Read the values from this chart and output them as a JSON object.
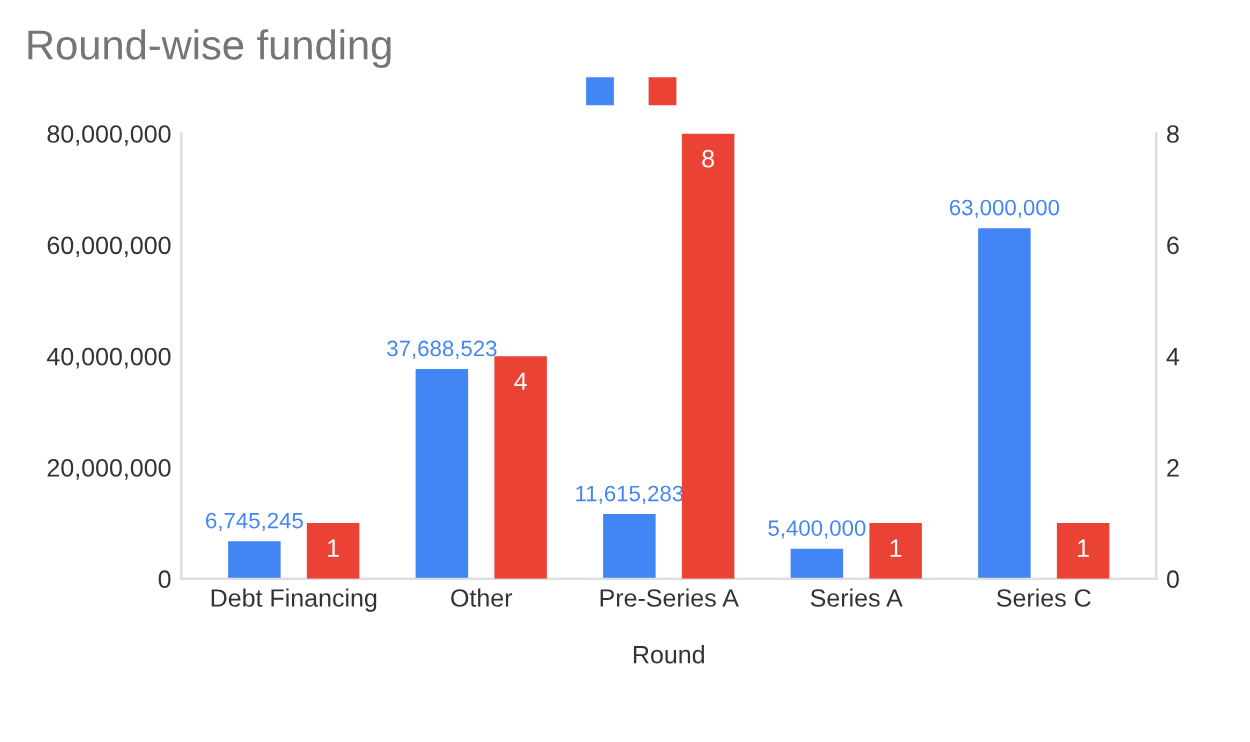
{
  "chart_data": {
    "type": "bar",
    "title": "Round-wise funding",
    "xlabel": "Round",
    "categories": [
      "Debt Financing",
      "Other",
      "Pre-Series A",
      "Series A",
      "Series C"
    ],
    "series": [
      {
        "color": "#4285f4",
        "values": [
          6745245,
          37688523,
          11615283,
          5400000,
          63000000
        ],
        "value_labels": [
          "6,745,245",
          "37,688,523",
          "11,615,283",
          "5,400,000",
          "63,000,000"
        ]
      },
      {
        "color": "#ea4335",
        "values": [
          1,
          4,
          8,
          1,
          1
        ],
        "axis": "y2",
        "value_labels": [
          "1",
          "4",
          "8",
          "1",
          "1"
        ]
      }
    ],
    "ylim": [
      0,
      80000000
    ],
    "yticks": [
      {
        "value": 0,
        "label": "0"
      },
      {
        "value": 20000000,
        "label": "20,000,000"
      },
      {
        "value": 40000000,
        "label": "40,000,000"
      },
      {
        "value": 60000000,
        "label": "60,000,000"
      },
      {
        "value": 80000000,
        "label": "80,000,000"
      }
    ],
    "y2lim": [
      0,
      8
    ],
    "y2ticks": [
      0,
      2,
      4,
      6,
      8
    ],
    "grid": false
  }
}
